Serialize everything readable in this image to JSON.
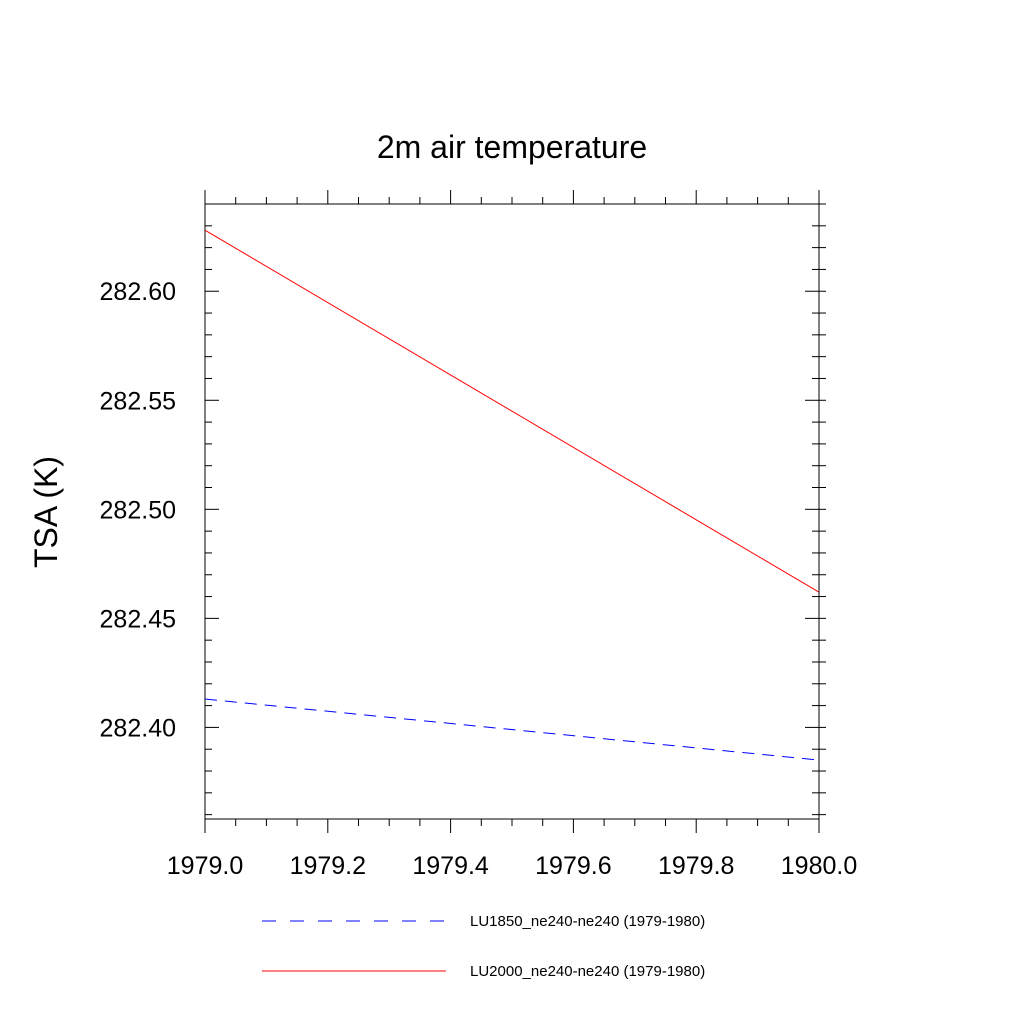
{
  "chart_data": {
    "type": "line",
    "title": "2m air temperature",
    "xlabel": "",
    "ylabel": "TSA  (K)",
    "xlim": [
      1979.0,
      1980.0
    ],
    "ylim": [
      282.358,
      282.64
    ],
    "x_ticks": [
      1979.0,
      1979.2,
      1979.4,
      1979.6,
      1979.8,
      1980.0
    ],
    "x_tick_labels": [
      "1979.0",
      "1979.2",
      "1979.4",
      "1979.6",
      "1979.8",
      "1980.0"
    ],
    "y_ticks": [
      282.4,
      282.45,
      282.5,
      282.55,
      282.6
    ],
    "y_tick_labels": [
      "282.40",
      "282.45",
      "282.50",
      "282.55",
      "282.60"
    ],
    "grid": false,
    "legend_position": "bottom",
    "series": [
      {
        "name": "LU1850_ne240-ne240 (1979-1980)",
        "x": [
          1979.0,
          1980.0
        ],
        "y": [
          282.413,
          282.385
        ],
        "color": "#0000ff",
        "style": "dashed"
      },
      {
        "name": "LU2000_ne240-ne240 (1979-1980)",
        "x": [
          1979.0,
          1980.0
        ],
        "y": [
          282.628,
          282.462
        ],
        "color": "#ff0000",
        "style": "solid"
      }
    ]
  }
}
